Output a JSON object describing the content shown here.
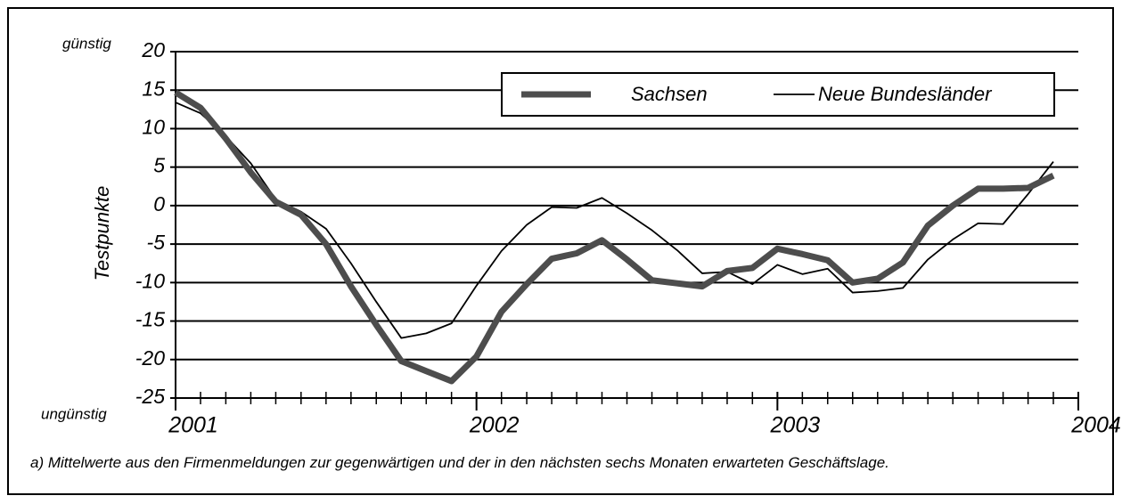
{
  "chart_data": {
    "type": "line",
    "upper_note": "günstig",
    "lower_note": "ungünstig",
    "y_label": "Testpunkte",
    "footnote": "a) Mittelwerte aus den Firmenmeldungen zur gegenwärtigen und der in den nächsten sechs Monaten erwarteten Geschäftslage.",
    "x": [
      2001,
      2001.083,
      2001.167,
      2001.25,
      2001.333,
      2001.417,
      2001.5,
      2001.583,
      2001.667,
      2001.75,
      2001.833,
      2001.917,
      2002,
      2002.083,
      2002.167,
      2002.25,
      2002.333,
      2002.417,
      2002.5,
      2002.583,
      2002.667,
      2002.75,
      2002.833,
      2002.917,
      2003,
      2003.083,
      2003.167,
      2003.25,
      2003.333,
      2003.417,
      2003.5,
      2003.583,
      2003.667,
      2003.75,
      2003.833,
      2003.917
    ],
    "series": [
      {
        "name": "Sachsen",
        "color": "#4d4d4d",
        "width": 7,
        "values": [
          14.7,
          12.7,
          8.7,
          4.3,
          0.5,
          -1.2,
          -5,
          -10.5,
          -15.5,
          -20.2,
          -21.5,
          -22.8,
          -19.6,
          -13.8,
          -10.2,
          -6.9,
          -6.2,
          -4.5,
          -7,
          -9.7,
          -10.1,
          -10.5,
          -8.5,
          -8.1,
          -5.6,
          -6.3,
          -7.1,
          -10,
          -9.5,
          -7.4,
          -2.6,
          0,
          2.2,
          2.2,
          2.3,
          3.9
        ]
      },
      {
        "name": "Neue Bundesländer",
        "color": "#000000",
        "width": 1.8,
        "values": [
          13.4,
          12,
          9,
          5.5,
          0.8,
          -0.8,
          -3,
          -7.5,
          -12.5,
          -17.2,
          -16.6,
          -15.3,
          -10.4,
          -5.9,
          -2.5,
          -0.2,
          -0.3,
          1,
          -1,
          -3.2,
          -5.8,
          -8.8,
          -8.6,
          -10.2,
          -7.7,
          -8.9,
          -8.2,
          -11.3,
          -11.1,
          -10.7,
          -7,
          -4.4,
          -2.3,
          -2.4,
          1.5,
          5.7
        ]
      }
    ],
    "xlim": [
      2001,
      2004
    ],
    "xticks": [
      2001,
      2002,
      2003,
      2004
    ],
    "ylim": [
      -25,
      20
    ],
    "yticks": [
      -25,
      -20,
      -15,
      -10,
      -5,
      0,
      5,
      10,
      15,
      20
    ],
    "grid": true,
    "legend": "top-right"
  }
}
